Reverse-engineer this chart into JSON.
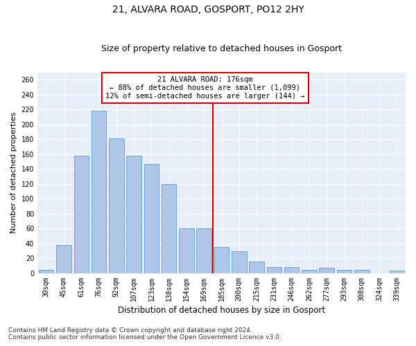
{
  "title1": "21, ALVARA ROAD, GOSPORT, PO12 2HY",
  "title2": "Size of property relative to detached houses in Gosport",
  "xlabel": "Distribution of detached houses by size in Gosport",
  "ylabel": "Number of detached properties",
  "footer1": "Contains HM Land Registry data © Crown copyright and database right 2024.",
  "footer2": "Contains public sector information licensed under the Open Government Licence v3.0.",
  "categories": [
    "30sqm",
    "45sqm",
    "61sqm",
    "76sqm",
    "92sqm",
    "107sqm",
    "123sqm",
    "138sqm",
    "154sqm",
    "169sqm",
    "185sqm",
    "200sqm",
    "215sqm",
    "231sqm",
    "246sqm",
    "262sqm",
    "277sqm",
    "293sqm",
    "308sqm",
    "324sqm",
    "339sqm"
  ],
  "values": [
    5,
    38,
    158,
    218,
    181,
    158,
    147,
    120,
    60,
    60,
    35,
    30,
    16,
    8,
    8,
    5,
    7,
    5,
    5,
    0,
    4
  ],
  "bar_color": "#aec6e8",
  "bar_edge_color": "#5b9bd5",
  "vline_x": 9.5,
  "vline_color": "#cc0000",
  "annotation_text": "21 ALVARA ROAD: 176sqm\n← 88% of detached houses are smaller (1,099)\n12% of semi-detached houses are larger (144) →",
  "annotation_box_color": "#cc0000",
  "ylim": [
    0,
    270
  ],
  "yticks": [
    0,
    20,
    40,
    60,
    80,
    100,
    120,
    140,
    160,
    180,
    200,
    220,
    240,
    260
  ],
  "background_color": "#e8eef7",
  "grid_color": "#ffffff",
  "title1_fontsize": 10,
  "title2_fontsize": 9,
  "xlabel_fontsize": 8.5,
  "ylabel_fontsize": 8,
  "tick_fontsize": 7,
  "footer_fontsize": 6.5
}
